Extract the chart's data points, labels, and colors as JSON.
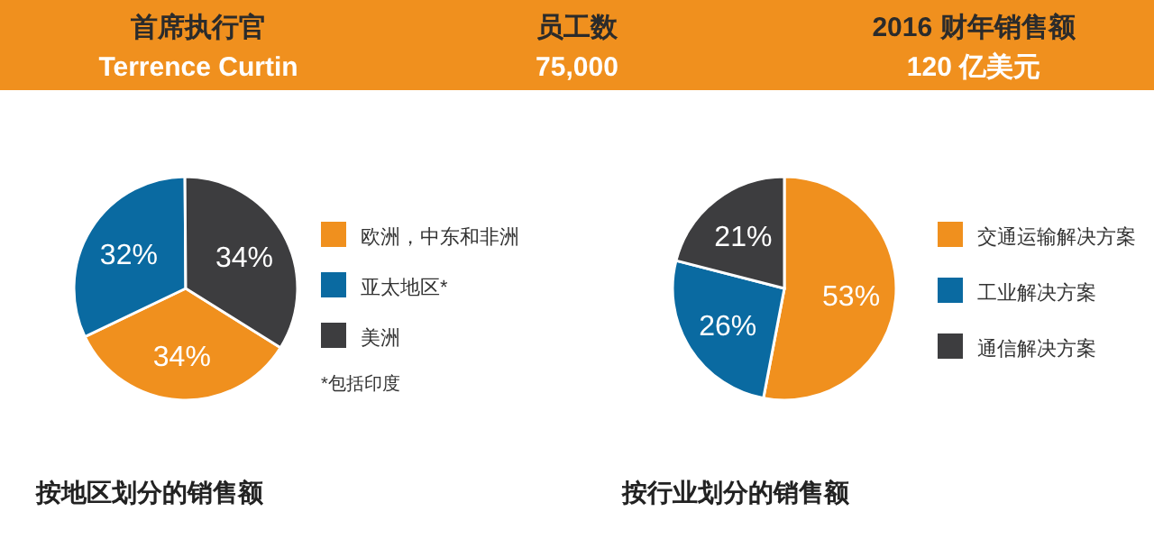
{
  "chart_data": [
    {
      "type": "other",
      "annotations": [
        "首席执行官",
        "Terrence Curtin",
        "员工数",
        "75,000",
        "2016 财年销售额",
        "120 亿美元"
      ],
      "color": "#f0901e"
    },
    {
      "type": "pie",
      "title": "按地区划分的销售额",
      "categories": [
        "欧洲，中东和非洲",
        "亚太地区*",
        "美洲"
      ],
      "values": [
        34,
        32,
        34
      ],
      "colors": [
        "#f0901e",
        "#0a6aa1",
        "#3d3d3f"
      ],
      "value_labels": [
        "34%",
        "32%",
        "34%"
      ],
      "legend": "right",
      "annotations": [
        "*包括印度"
      ]
    },
    {
      "type": "pie",
      "title": "按行业划分的销售额",
      "categories": [
        "交通运输解决方案",
        "工业解决方案",
        "通信解决方案"
      ],
      "values": [
        53,
        26,
        21
      ],
      "colors": [
        "#f0901e",
        "#0a6aa1",
        "#3d3d3f"
      ],
      "value_labels": [
        "53%",
        "26%",
        "21%"
      ],
      "legend": "right"
    }
  ]
}
